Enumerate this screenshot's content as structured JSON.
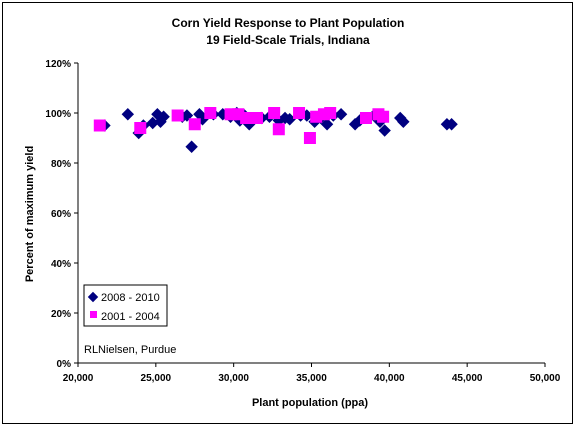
{
  "chart_data": {
    "type": "scatter",
    "title": "Corn Yield Response to Plant Population",
    "subtitle": "19 Field-Scale Trials, Indiana",
    "xlabel": "Plant population (ppa)",
    "ylabel": "Percent of maximum yield",
    "xlim": [
      20000,
      50000
    ],
    "ylim": [
      0,
      120
    ],
    "x_ticks": [
      "20,000",
      "25,000",
      "30,000",
      "35,000",
      "40,000",
      "45,000",
      "50,000"
    ],
    "y_ticks": [
      "0%",
      "20%",
      "40%",
      "60%",
      "80%",
      "100%",
      "120%"
    ],
    "x_tick_values": [
      20000,
      25000,
      30000,
      35000,
      40000,
      45000,
      50000
    ],
    "y_tick_values": [
      0,
      20,
      40,
      60,
      80,
      100,
      120
    ],
    "grid": false,
    "legend_position": "bottom-left",
    "annotation": "RLNielsen, Purdue",
    "series": [
      {
        "name": "2008 - 2010",
        "marker": "diamond",
        "color": "#000080",
        "points": [
          [
            21700,
            95
          ],
          [
            23200,
            99.5
          ],
          [
            23900,
            92
          ],
          [
            24200,
            95
          ],
          [
            24800,
            96
          ],
          [
            25100,
            99.5
          ],
          [
            25300,
            96.5
          ],
          [
            25500,
            98.5
          ],
          [
            26700,
            98.5
          ],
          [
            27000,
            99
          ],
          [
            27300,
            86.5
          ],
          [
            27800,
            99.5
          ],
          [
            28000,
            97.5
          ],
          [
            28700,
            99.5
          ],
          [
            29300,
            99.5
          ],
          [
            29800,
            98.5
          ],
          [
            30200,
            100
          ],
          [
            30400,
            97
          ],
          [
            30700,
            99
          ],
          [
            31000,
            95.5
          ],
          [
            31200,
            97
          ],
          [
            31800,
            98
          ],
          [
            32300,
            98.5
          ],
          [
            32900,
            97
          ],
          [
            33300,
            98
          ],
          [
            33600,
            97.5
          ],
          [
            34300,
            99
          ],
          [
            34700,
            99
          ],
          [
            35200,
            96.5
          ],
          [
            35600,
            98
          ],
          [
            36000,
            95.5
          ],
          [
            36400,
            99
          ],
          [
            36900,
            99.5
          ],
          [
            37800,
            95.5
          ],
          [
            38100,
            97
          ],
          [
            39000,
            99
          ],
          [
            39400,
            96.5
          ],
          [
            39700,
            93
          ],
          [
            40700,
            98
          ],
          [
            40900,
            96.5
          ],
          [
            43700,
            95.5
          ],
          [
            44000,
            95.5
          ]
        ]
      },
      {
        "name": "2001 - 2004",
        "marker": "square",
        "color": "#ff00ff",
        "points": [
          [
            21400,
            95
          ],
          [
            24000,
            94
          ],
          [
            26400,
            99
          ],
          [
            27500,
            95.5
          ],
          [
            28500,
            100
          ],
          [
            29800,
            99.5
          ],
          [
            30300,
            99.5
          ],
          [
            30800,
            98
          ],
          [
            31500,
            98
          ],
          [
            32600,
            100
          ],
          [
            32900,
            93.5
          ],
          [
            34200,
            100
          ],
          [
            34900,
            90
          ],
          [
            35300,
            98.5
          ],
          [
            35800,
            99.5
          ],
          [
            36200,
            100
          ],
          [
            38500,
            98
          ],
          [
            39300,
            99.5
          ],
          [
            39600,
            98.5
          ]
        ]
      }
    ]
  }
}
